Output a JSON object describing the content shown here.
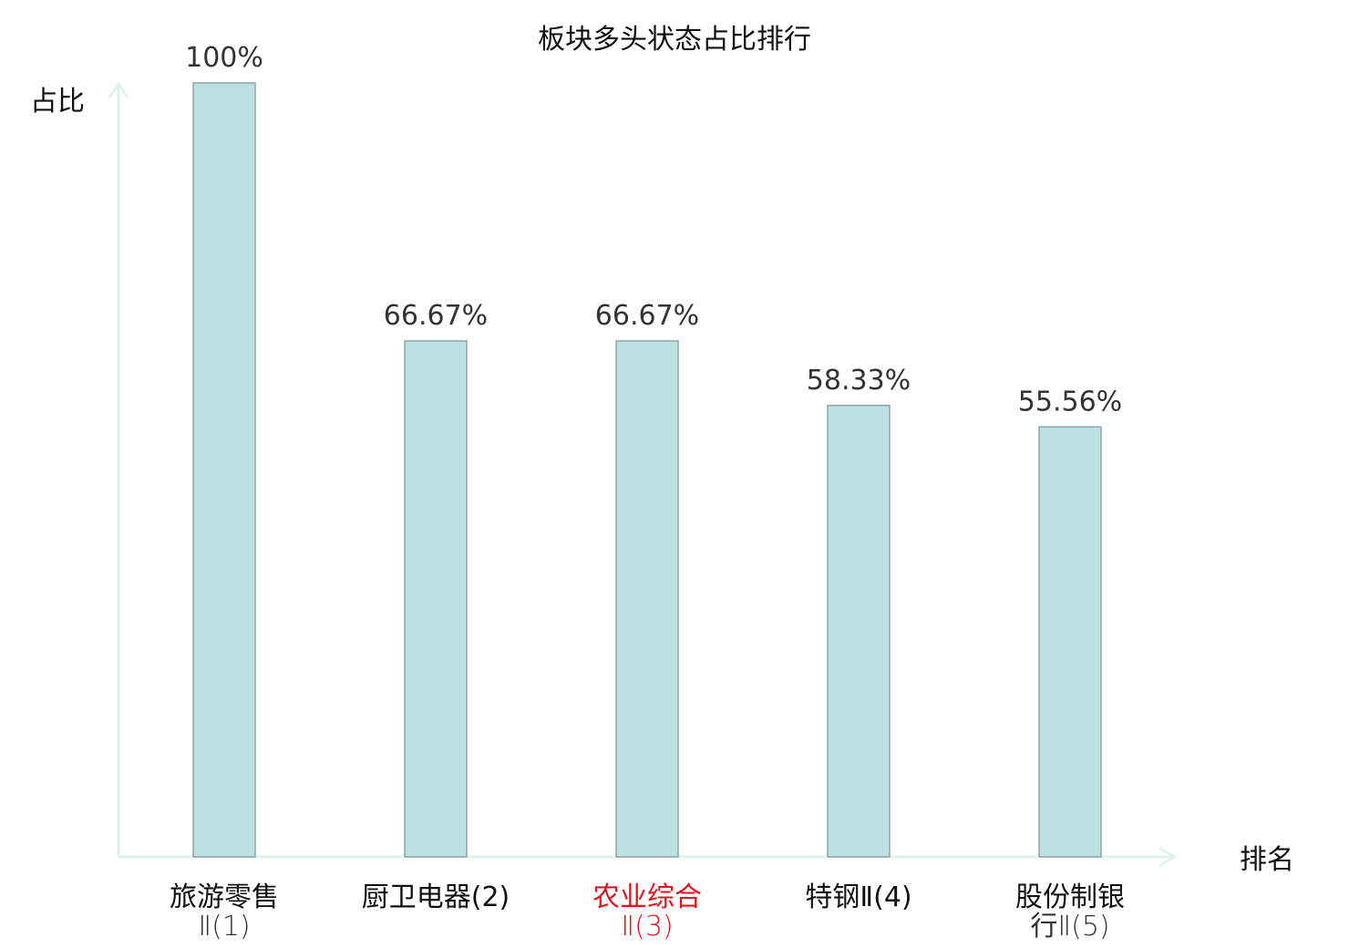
{
  "chart_data": {
    "type": "bar",
    "title": "板块多头状态占比排行",
    "ylabel": "占比",
    "xlabel": "排名",
    "ylim": [
      0,
      100
    ],
    "grid": false,
    "categories": [
      {
        "line1": "旅游零售",
        "line2": "Ⅱ(1)",
        "highlight": false
      },
      {
        "line1": "厨卫电器(2)",
        "line2": "",
        "highlight": false
      },
      {
        "line1": "农业综合",
        "line2": "Ⅱ(3)",
        "highlight": true
      },
      {
        "line1": "特钢Ⅱ(4)",
        "line2": "",
        "highlight": false
      },
      {
        "line1": "股份制银",
        "line2": "行Ⅱ(5)",
        "highlight": false
      }
    ],
    "values": [
      100,
      66.67,
      66.67,
      58.33,
      55.56
    ],
    "value_labels": [
      "100%",
      "66.67%",
      "66.67%",
      "58.33%",
      "55.56%"
    ]
  },
  "colors": {
    "bar_fill": "#bde1e2",
    "bar_stroke": "#8aa7a8",
    "axis": "#e0f2ef",
    "highlight": "#e0141e"
  }
}
